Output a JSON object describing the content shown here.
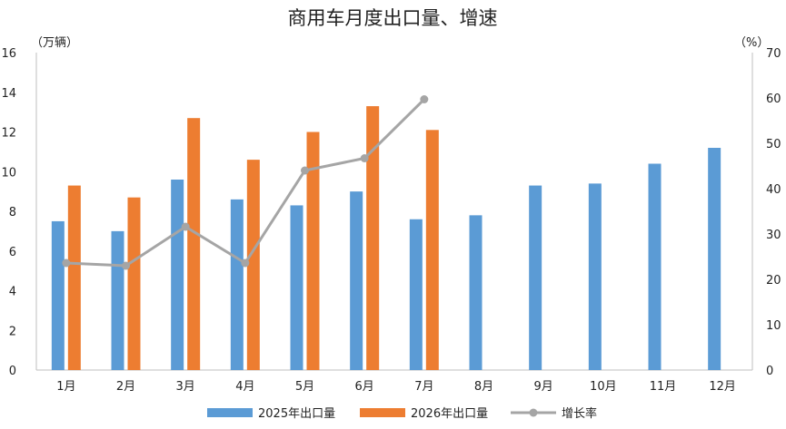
{
  "chart_data": {
    "type": "bar",
    "title": "商用车月度出口量、增速",
    "y_left_unit": "（万辆）",
    "y_right_unit": "（%）",
    "ylim_left": [
      0,
      16
    ],
    "ylim_right": [
      0,
      70
    ],
    "y_left_ticks": [
      0,
      2,
      4,
      6,
      8,
      10,
      12,
      14,
      16
    ],
    "y_right_ticks": [
      0,
      10,
      20,
      30,
      40,
      50,
      60,
      70
    ],
    "categories": [
      "1月",
      "2月",
      "3月",
      "4月",
      "5月",
      "6月",
      "7月",
      "8月",
      "9月",
      "10月",
      "11月",
      "12月"
    ],
    "series": [
      {
        "name": "2025年出口量",
        "type": "bar",
        "axis": "left",
        "color": "#5B9BD5",
        "values": [
          7.5,
          7.0,
          9.6,
          8.6,
          8.3,
          9.0,
          7.6,
          7.8,
          9.3,
          9.4,
          10.4,
          11.2
        ]
      },
      {
        "name": "2026年出口量",
        "type": "bar",
        "axis": "left",
        "color": "#ED7D31",
        "values": [
          9.3,
          8.7,
          12.7,
          10.6,
          12.0,
          13.3,
          12.1,
          null,
          null,
          null,
          null,
          null
        ]
      },
      {
        "name": "增长率",
        "type": "line",
        "axis": "right",
        "color": "#A5A5A5",
        "values": [
          23.6,
          23.0,
          31.6,
          23.6,
          44.0,
          46.7,
          59.7,
          null,
          null,
          null,
          null,
          null
        ]
      }
    ],
    "grid": false,
    "legend_position": "bottom"
  }
}
